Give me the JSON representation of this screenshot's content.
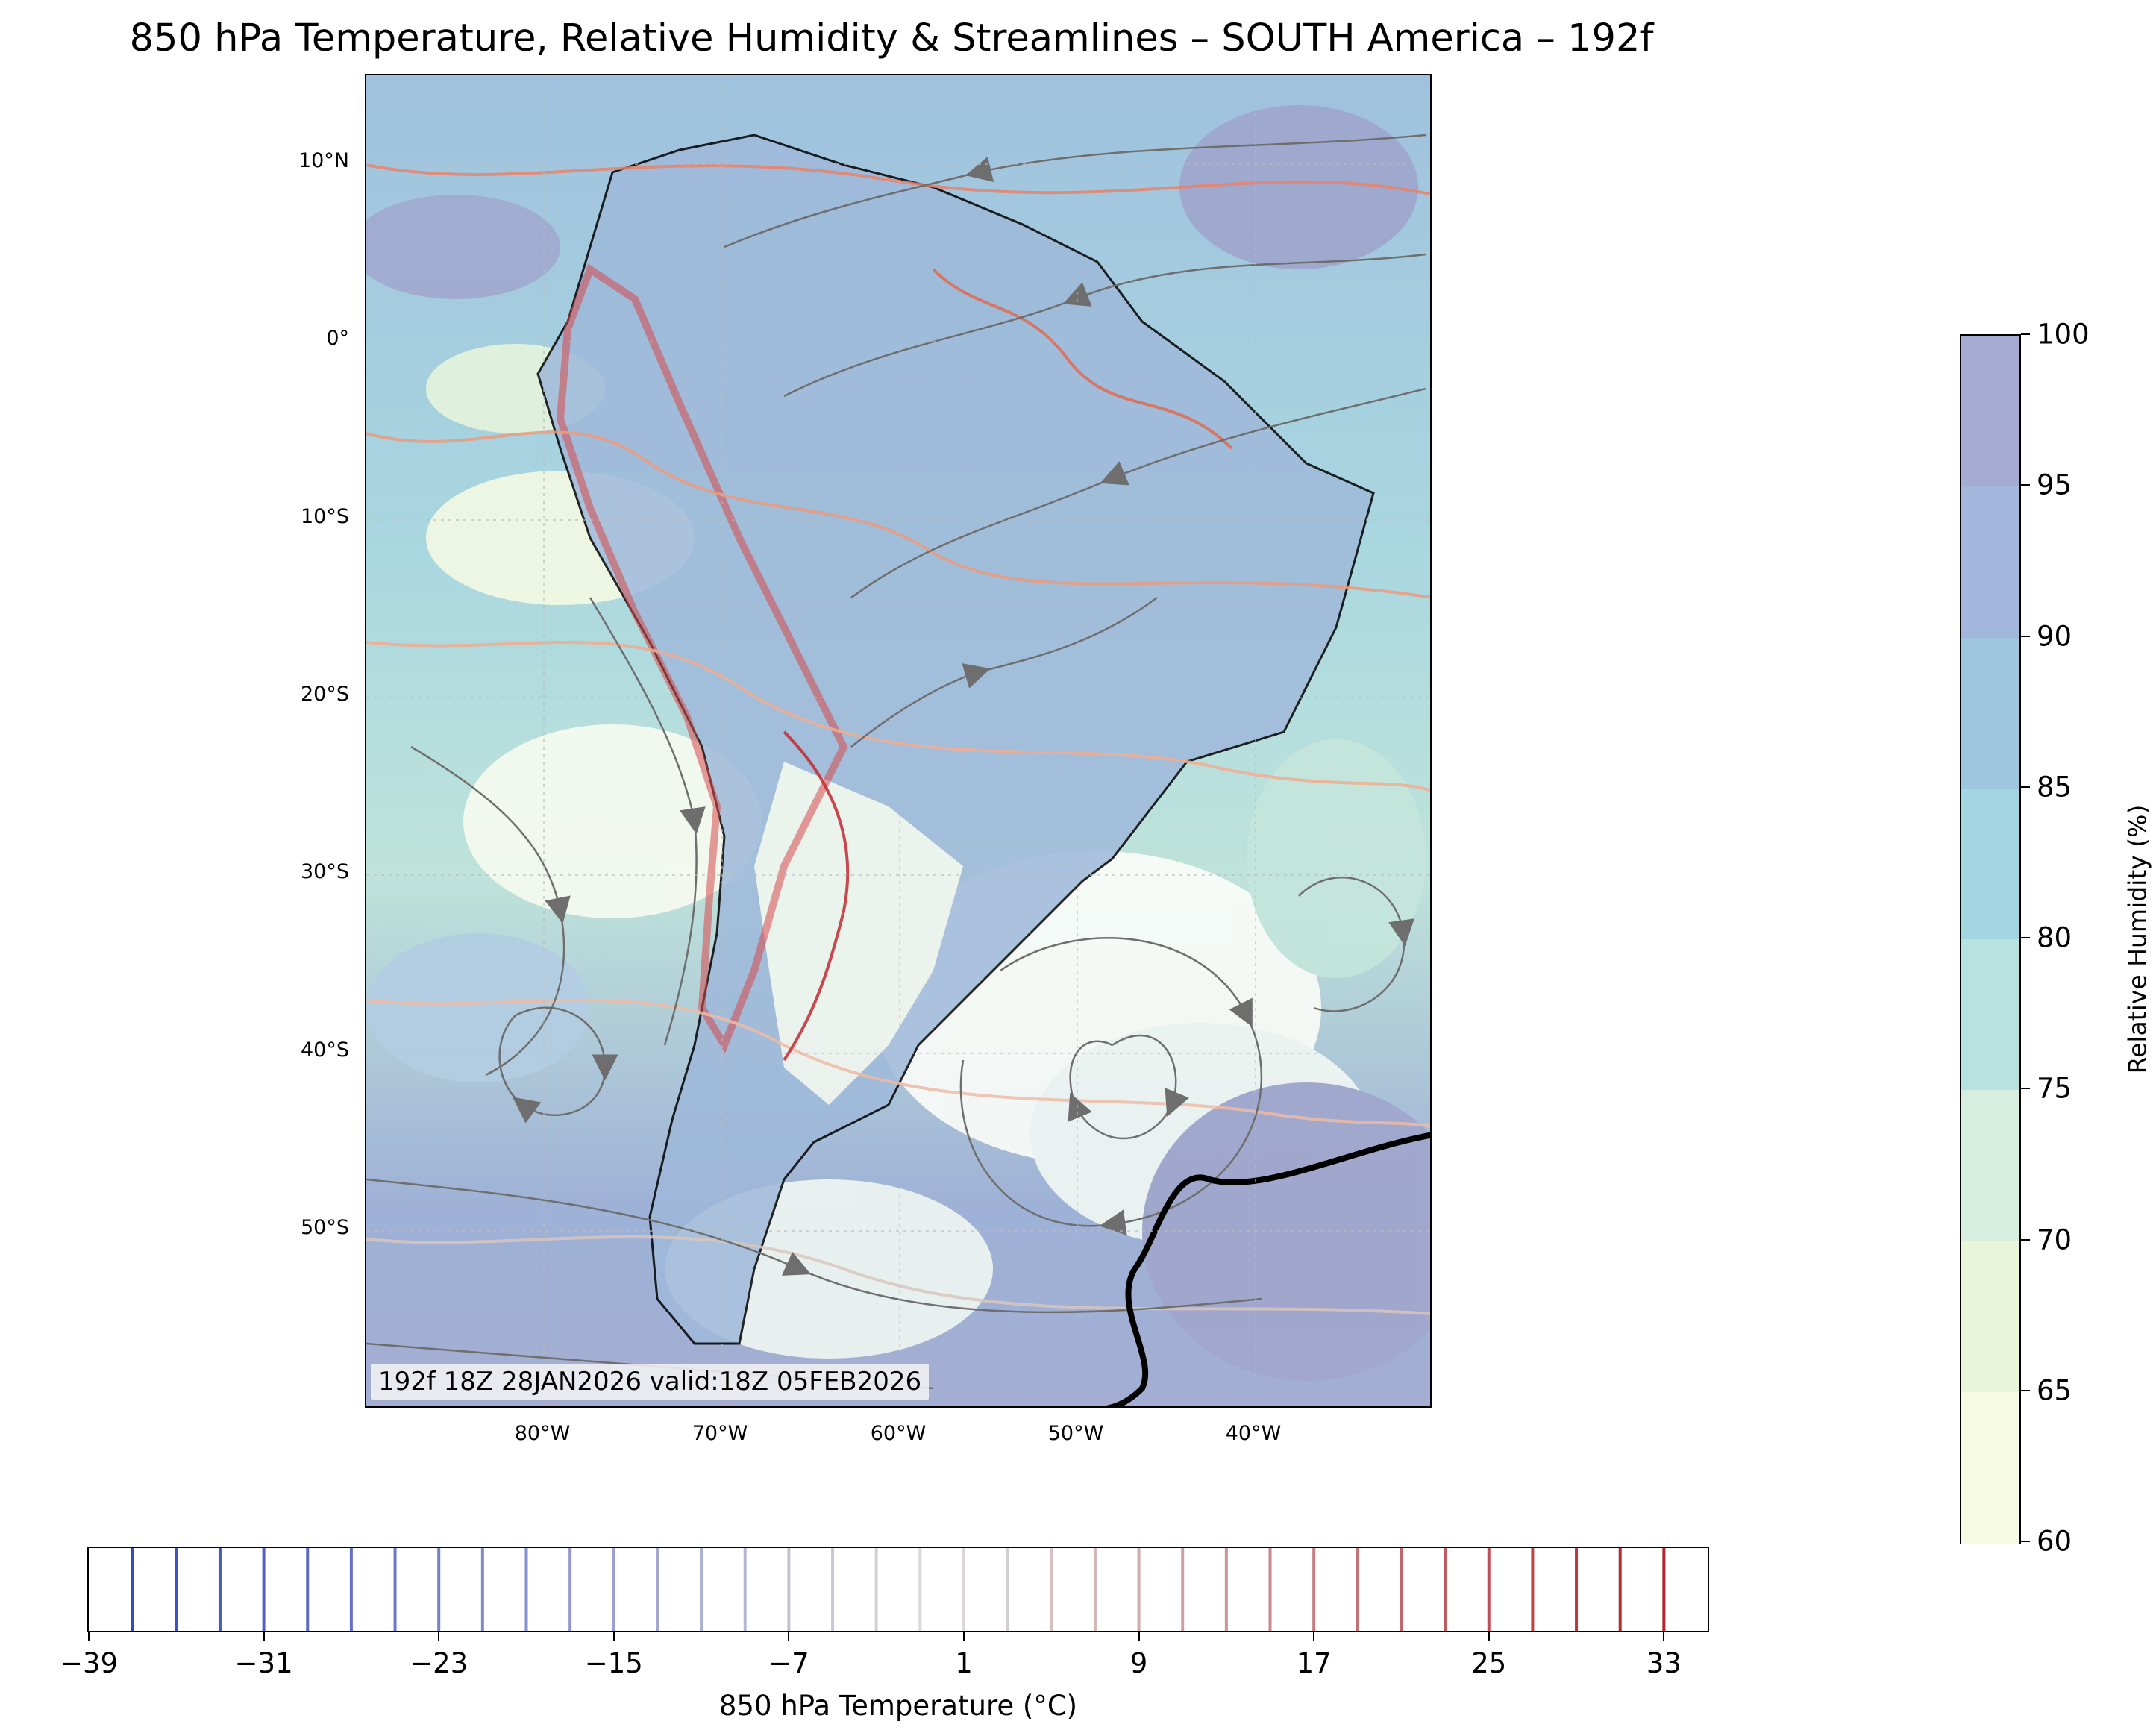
{
  "title": "850 hPa Temperature, Relative Humidity & Streamlines – SOUTH America – 192f",
  "map": {
    "region": "SOUTH America",
    "lat_labels": [
      "10°N",
      "0°",
      "10°S",
      "20°S",
      "30°S",
      "40°S",
      "50°S"
    ],
    "lon_labels": [
      "80°W",
      "70°W",
      "60°W",
      "50°W",
      "40°W"
    ],
    "extent": {
      "lon_min": -90,
      "lon_max": -30,
      "lat_min": -60,
      "lat_max": 15
    },
    "timestamp": "192f 18Z 28JAN2026 valid:18Z 05FEB2026",
    "colors": {
      "land_outline": "#000000",
      "streamline": "#6e6e6e",
      "graticule": "#bbbbbb"
    }
  },
  "rh_colorbar": {
    "label": "Relative Humidity (%)",
    "ticks": [
      "60",
      "65",
      "70",
      "75",
      "80",
      "85",
      "90",
      "95",
      "100"
    ],
    "colors": [
      "#f7fbe3",
      "#e9f5d9",
      "#d5eedf",
      "#b7e2e0",
      "#a3d5e2",
      "#9fc6df",
      "#a3b7dc",
      "#a6abd1"
    ]
  },
  "temp_colorbar": {
    "label": "850 hPa Temperature (°C)",
    "ticks": [
      "−39",
      "−31",
      "−23",
      "−15",
      "−7",
      "1",
      "9",
      "17",
      "25",
      "33"
    ],
    "range": [
      -39,
      35
    ],
    "contour_interval": 2,
    "colors": {
      "cold": "#3040c0",
      "neutral": "#dcdcdc",
      "warm": "#b01820"
    }
  }
}
